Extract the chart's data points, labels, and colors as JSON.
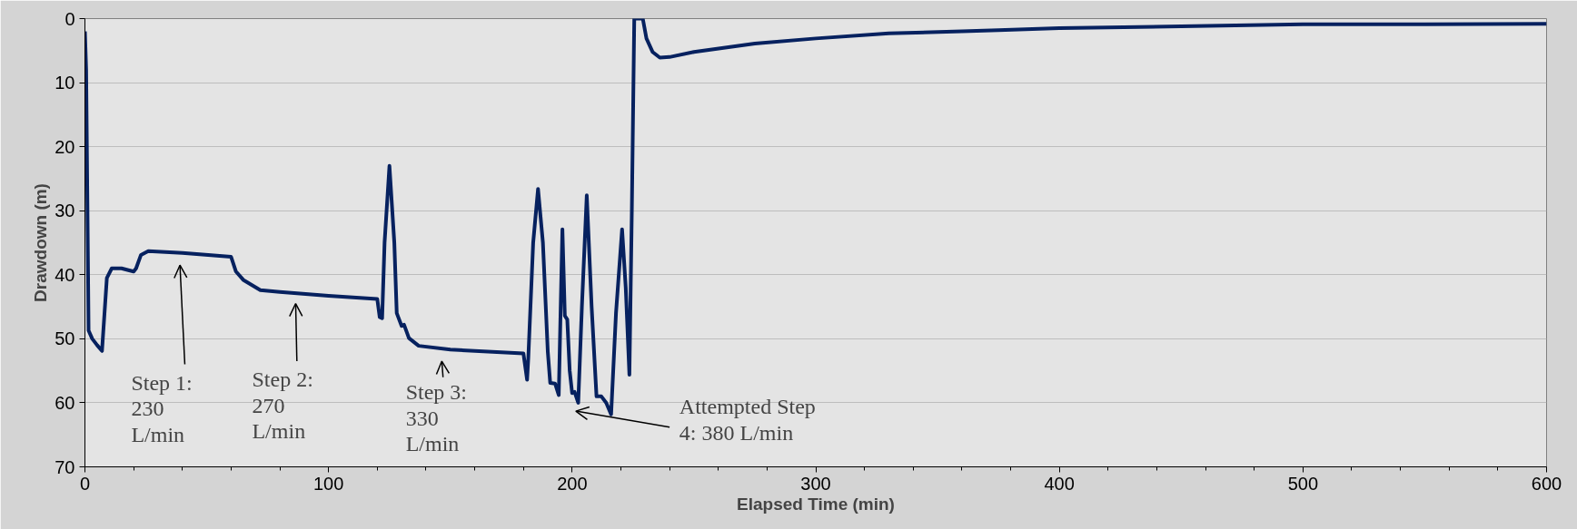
{
  "chart_data": {
    "type": "line",
    "xlabel": "Elapsed Time (min)",
    "ylabel": "Drawdown (m)",
    "xlim": [
      0,
      600
    ],
    "ylim": [
      70,
      0
    ],
    "xticks": [
      0,
      {
        "value": 20,
        "label": null
      },
      {
        "value": 40,
        "label": null
      },
      {
        "value": 60,
        "label": null
      },
      {
        "value": 80,
        "label": null
      },
      100,
      {
        "value": 120,
        "label": null
      },
      {
        "value": 140,
        "label": null
      },
      {
        "value": 160,
        "label": null
      },
      {
        "value": 180,
        "label": null
      },
      200,
      {
        "value": 220,
        "label": null
      },
      {
        "value": 240,
        "label": null
      },
      {
        "value": 260,
        "label": null
      },
      {
        "value": 280,
        "label": null
      },
      300,
      {
        "value": 320,
        "label": null
      },
      {
        "value": 340,
        "label": null
      },
      {
        "value": 360,
        "label": null
      },
      {
        "value": 380,
        "label": null
      },
      400,
      {
        "value": 420,
        "label": null
      },
      {
        "value": 440,
        "label": null
      },
      {
        "value": 460,
        "label": null
      },
      {
        "value": 480,
        "label": null
      },
      500,
      {
        "value": 520,
        "label": null
      },
      {
        "value": 540,
        "label": null
      },
      {
        "value": 560,
        "label": null
      },
      {
        "value": 580,
        "label": null
      },
      600
    ],
    "yticks": [
      0,
      10,
      20,
      30,
      40,
      50,
      60,
      70
    ],
    "grid": "y",
    "marker": "none",
    "line_style": "solid",
    "series": [
      {
        "color": "#06215f",
        "x": [
          0,
          0.5,
          1.5,
          3,
          5,
          7,
          9,
          11,
          15,
          20,
          21,
          23,
          26,
          40,
          60,
          62,
          65,
          72,
          80,
          100,
          120,
          121,
          122,
          123,
          125,
          127,
          128,
          130,
          131,
          133,
          137,
          150,
          180,
          181.5,
          182,
          184,
          186,
          188,
          190,
          191,
          193,
          194.5,
          196,
          197,
          198,
          199,
          200,
          201,
          202.5,
          204,
          206,
          208,
          210,
          212,
          214,
          216,
          218,
          220.5,
          222,
          223.5,
          224.5,
          225.5,
          229,
          230.5,
          233,
          236,
          240,
          250,
          275,
          300,
          330,
          360,
          375,
          400,
          450,
          500,
          550,
          600
        ],
        "values": [
          2,
          8,
          48.7,
          50,
          51,
          51.9,
          40.5,
          39,
          39,
          39.5,
          39,
          36.9,
          36.3,
          36.6,
          37.2,
          39.5,
          40.8,
          42.4,
          42.7,
          43.3,
          43.8,
          46.6,
          46.8,
          35,
          23,
          35,
          46,
          48,
          47.8,
          49.9,
          51.1,
          51.7,
          52.3,
          56.4,
          53,
          35,
          26.6,
          35,
          52,
          56.9,
          57,
          58.8,
          32.9,
          46.4,
          47,
          55,
          58.5,
          58.3,
          60,
          45,
          27.6,
          45,
          59,
          59,
          60,
          61.8,
          46,
          32.9,
          42,
          55.6,
          30,
          0,
          0,
          3.1,
          5.2,
          6.1,
          6,
          5.2,
          3.9,
          3.1,
          2.3,
          2,
          1.8,
          1.5,
          1.2,
          0.9,
          0.9,
          0.8
        ]
      }
    ],
    "annotations": [
      "Step 1: 230 L/min",
      "Step 2: 270 L/min",
      "Step 3: 330 L/min",
      "Attempted Step 4: 380 L/min"
    ]
  }
}
